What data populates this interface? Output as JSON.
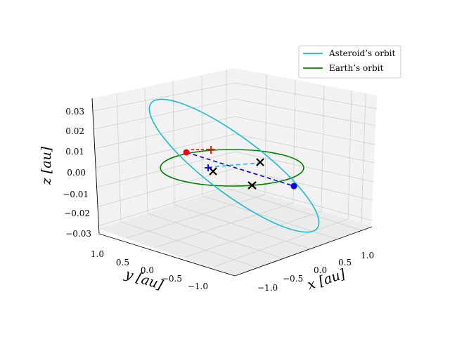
{
  "chart_data": {
    "type": "3d-line",
    "legend_position": "top-right",
    "axes": {
      "x": {
        "label": "$x$ [au]",
        "label_text": "x [au]",
        "ticks": [
          "−1.0",
          "−0.5",
          "0.0",
          "0.5",
          "1.0"
        ],
        "tick_values": [
          -1.0,
          -0.5,
          0.0,
          0.5,
          1.0
        ]
      },
      "y": {
        "label": "$y$ [au]",
        "label_text": "y [au]",
        "ticks": [
          "1.0",
          "0.5",
          "0.0",
          "−0.5",
          "−1.0"
        ],
        "tick_values": [
          1.0,
          0.5,
          0.0,
          -0.5,
          -1.0
        ]
      },
      "z": {
        "label": "$z$ [au]",
        "label_text": "z [au]",
        "ticks": [
          "0.03",
          "0.02",
          "0.01",
          "0.00",
          "−0.01",
          "−0.02",
          "−0.03"
        ],
        "tick_values": [
          0.03,
          0.02,
          0.01,
          0.0,
          -0.01,
          -0.02,
          -0.03
        ]
      }
    },
    "grid": true,
    "series": [
      {
        "name": "Asteroid’s orbit",
        "color": "#17becf",
        "style": "solid",
        "shape": "inclined ellipse"
      },
      {
        "name": "Earth’s orbit",
        "color": "#008000",
        "style": "solid",
        "shape": "circle, radius 1 au, z = 0"
      }
    ],
    "markers": [
      {
        "kind": "point",
        "color": "#ff0000"
      },
      {
        "kind": "point",
        "color": "#0000ff"
      },
      {
        "kind": "x",
        "color": "#000000"
      },
      {
        "kind": "x",
        "color": "#000000"
      },
      {
        "kind": "x",
        "color": "#000000"
      },
      {
        "kind": "plus",
        "color": "#ff0000"
      },
      {
        "kind": "plus",
        "color": "#0000ff"
      }
    ],
    "dashed_lines": [
      {
        "color": "#0000ff"
      },
      {
        "color": "#17becf"
      }
    ]
  }
}
